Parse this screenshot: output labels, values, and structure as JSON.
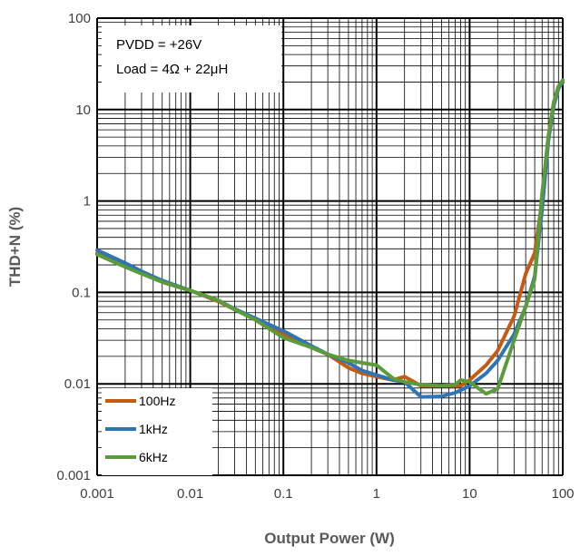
{
  "chart_data": {
    "type": "line",
    "xlabel": "Output Power (W)",
    "ylabel": "THD+N (%)",
    "xscale": "log",
    "yscale": "log",
    "xlim": [
      0.001,
      100
    ],
    "ylim": [
      0.001,
      100
    ],
    "x_ticks": [
      "0.001",
      "0.01",
      "0.1",
      "1",
      "10",
      "100"
    ],
    "y_ticks": [
      "0.001",
      "0.01",
      "0.1",
      "1",
      "10",
      "100"
    ],
    "grid": true,
    "annotations": [
      "PVDD = +26V",
      "Load = 4Ω + 22μH"
    ],
    "legend_position": "bottom-left",
    "series": [
      {
        "name": "100Hz",
        "color": "#C55A11",
        "points": [
          [
            0.001,
            0.27
          ],
          [
            0.002,
            0.2
          ],
          [
            0.003,
            0.17
          ],
          [
            0.005,
            0.13
          ],
          [
            0.01,
            0.105
          ],
          [
            0.02,
            0.08
          ],
          [
            0.03,
            0.065
          ],
          [
            0.05,
            0.052
          ],
          [
            0.1,
            0.035
          ],
          [
            0.2,
            0.025
          ],
          [
            0.3,
            0.021
          ],
          [
            0.5,
            0.015
          ],
          [
            0.7,
            0.013
          ],
          [
            1,
            0.012
          ],
          [
            1.5,
            0.011
          ],
          [
            2,
            0.012
          ],
          [
            3,
            0.0095
          ],
          [
            5,
            0.0095
          ],
          [
            8,
            0.0095
          ],
          [
            10,
            0.011
          ],
          [
            15,
            0.016
          ],
          [
            20,
            0.023
          ],
          [
            30,
            0.055
          ],
          [
            40,
            0.16
          ],
          [
            50,
            0.27
          ],
          [
            60,
            1.0
          ],
          [
            70,
            5.0
          ],
          [
            80,
            12
          ],
          [
            90,
            18
          ],
          [
            100,
            20
          ]
        ]
      },
      {
        "name": "1kHz",
        "color": "#2E75B6",
        "points": [
          [
            0.001,
            0.29
          ],
          [
            0.002,
            0.21
          ],
          [
            0.003,
            0.17
          ],
          [
            0.005,
            0.135
          ],
          [
            0.01,
            0.105
          ],
          [
            0.02,
            0.082
          ],
          [
            0.03,
            0.066
          ],
          [
            0.05,
            0.052
          ],
          [
            0.1,
            0.038
          ],
          [
            0.2,
            0.026
          ],
          [
            0.3,
            0.021
          ],
          [
            0.5,
            0.017
          ],
          [
            0.7,
            0.014
          ],
          [
            1,
            0.0125
          ],
          [
            1.5,
            0.011
          ],
          [
            2,
            0.0105
          ],
          [
            3,
            0.0072
          ],
          [
            5,
            0.0073
          ],
          [
            7,
            0.008
          ],
          [
            10,
            0.0095
          ],
          [
            15,
            0.013
          ],
          [
            20,
            0.018
          ],
          [
            30,
            0.035
          ],
          [
            40,
            0.07
          ],
          [
            50,
            0.15
          ],
          [
            60,
            0.8
          ],
          [
            70,
            4.5
          ],
          [
            80,
            11
          ],
          [
            90,
            17
          ],
          [
            100,
            20
          ]
        ]
      },
      {
        "name": "6kHz",
        "color": "#5B9B3A",
        "points": [
          [
            0.001,
            0.26
          ],
          [
            0.002,
            0.19
          ],
          [
            0.003,
            0.16
          ],
          [
            0.005,
            0.13
          ],
          [
            0.01,
            0.105
          ],
          [
            0.02,
            0.082
          ],
          [
            0.03,
            0.065
          ],
          [
            0.05,
            0.05
          ],
          [
            0.1,
            0.032
          ],
          [
            0.2,
            0.025
          ],
          [
            0.3,
            0.021
          ],
          [
            0.5,
            0.018
          ],
          [
            0.7,
            0.017
          ],
          [
            1,
            0.016
          ],
          [
            1.5,
            0.0115
          ],
          [
            2,
            0.0105
          ],
          [
            3,
            0.0098
          ],
          [
            5,
            0.0095
          ],
          [
            7,
            0.0098
          ],
          [
            8,
            0.011
          ],
          [
            10,
            0.0105
          ],
          [
            15,
            0.0078
          ],
          [
            20,
            0.0088
          ],
          [
            30,
            0.03
          ],
          [
            40,
            0.07
          ],
          [
            50,
            0.14
          ],
          [
            60,
            1.2
          ],
          [
            70,
            5.0
          ],
          [
            80,
            12
          ],
          [
            90,
            18
          ],
          [
            100,
            21
          ]
        ]
      }
    ]
  }
}
